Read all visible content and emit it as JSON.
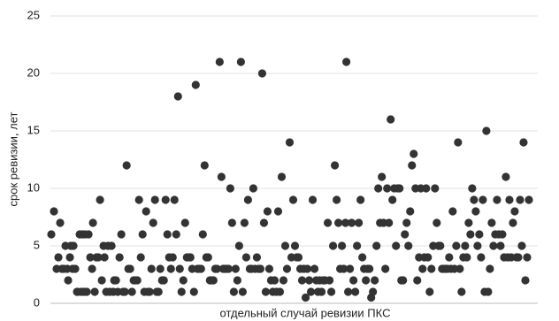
{
  "chart_data": {
    "type": "scatter",
    "y_label": "срок ревизии, лет",
    "x_label": "отдельный случай ревизии ПКС",
    "color": "#333333",
    "grid": true,
    "xlim": [
      0,
      550
    ],
    "ylim": [
      0,
      25
    ],
    "yticks": [
      0,
      5,
      10,
      15,
      20,
      25
    ],
    "x": [
      1,
      4,
      7,
      9,
      11,
      13,
      15,
      17,
      19,
      20,
      22,
      23,
      25,
      26,
      28,
      30,
      31,
      33,
      35,
      36,
      38,
      39,
      41,
      43,
      45,
      47,
      48,
      50,
      52,
      54,
      56,
      58,
      60,
      61,
      63,
      65,
      67,
      69,
      71,
      72,
      74,
      76,
      78,
      80,
      82,
      84,
      86,
      88,
      90,
      92,
      94,
      96,
      98,
      100,
      102,
      104,
      106,
      108,
      110,
      112,
      114,
      116,
      118,
      120,
      122,
      124,
      126,
      128,
      130,
      132,
      134,
      136,
      138,
      140,
      142,
      144,
      146,
      148,
      150,
      152,
      154,
      156,
      158,
      160,
      162,
      164,
      166,
      168,
      170,
      172,
      174,
      176,
      178,
      180,
      182,
      184,
      186,
      188,
      191,
      193,
      195,
      197,
      199,
      201,
      203,
      205,
      207,
      209,
      211,
      213,
      215,
      217,
      219,
      221,
      223,
      225,
      227,
      229,
      231,
      233,
      235,
      237,
      239,
      241,
      243,
      245,
      247,
      249,
      251,
      253,
      255,
      257,
      259,
      261,
      263,
      265,
      267,
      270,
      272,
      274,
      276,
      278,
      280,
      282,
      284,
      286,
      288,
      290,
      292,
      294,
      296,
      298,
      300,
      302,
      304,
      306,
      308,
      310,
      313,
      315,
      317,
      319,
      321,
      323,
      325,
      327,
      329,
      331,
      333,
      334,
      336,
      338,
      340,
      342,
      344,
      346,
      348,
      350,
      352,
      354,
      356,
      358,
      360,
      362,
      364,
      366,
      368,
      370,
      372,
      374,
      376,
      378,
      380,
      382,
      384,
      386,
      388,
      390,
      392,
      394,
      396,
      398,
      400,
      402,
      404,
      406,
      408,
      410,
      412,
      414,
      416,
      418,
      420,
      422,
      424,
      426,
      428,
      430,
      432,
      434,
      436,
      438,
      440,
      442,
      444,
      446,
      448,
      450,
      452,
      454,
      456,
      458,
      460,
      462,
      464,
      466,
      468,
      470,
      472,
      474,
      476,
      478,
      480,
      482,
      484,
      486,
      488,
      490,
      492,
      494,
      496,
      498,
      500,
      502,
      504,
      506,
      508,
      510,
      512,
      514,
      516,
      518,
      520,
      522,
      524,
      526,
      528,
      530,
      532,
      534,
      536,
      538,
      540
    ],
    "values": [
      6,
      8,
      3,
      4,
      7,
      3,
      3,
      5,
      3,
      2,
      4,
      5,
      3,
      5,
      3,
      1,
      1,
      6,
      1,
      6,
      1,
      6,
      1,
      6,
      4,
      3,
      7,
      1,
      4,
      4,
      9,
      2,
      5,
      4,
      1,
      5,
      1,
      5,
      1,
      2,
      2,
      1,
      4,
      6,
      1,
      1,
      12,
      3,
      3,
      1,
      2,
      2,
      2,
      9,
      4,
      6,
      1,
      8,
      1,
      1,
      3,
      7,
      9,
      1,
      1,
      3,
      2,
      2,
      9,
      6,
      4,
      3,
      4,
      9,
      6,
      18,
      3,
      1,
      2,
      7,
      4,
      4,
      4,
      3,
      1,
      19,
      3,
      3,
      3,
      6,
      12,
      4,
      4,
      2,
      2,
      2,
      3,
      3,
      21,
      11,
      3,
      3,
      3,
      3,
      10,
      7,
      1,
      3,
      2,
      5,
      21,
      1,
      7,
      4,
      9,
      3,
      3,
      10,
      3,
      4,
      3,
      3,
      20,
      7,
      1,
      8,
      3,
      2,
      1,
      2,
      1,
      8,
      1,
      11,
      2,
      5,
      3,
      14,
      4,
      9,
      5,
      4,
      4,
      3,
      2,
      3,
      0.5,
      3,
      2,
      1,
      9,
      3,
      2,
      1,
      2,
      1,
      2,
      2,
      7,
      2,
      1,
      5,
      12,
      9,
      7,
      3,
      5,
      3,
      7,
      21,
      1,
      3,
      7,
      2,
      1,
      5,
      7,
      9,
      4,
      3,
      2,
      3,
      3,
      0.5,
      1,
      2,
      5,
      10,
      7,
      11,
      7,
      3,
      10,
      7,
      16,
      9,
      10,
      5,
      10,
      10,
      2,
      2,
      6,
      7,
      5,
      8,
      12,
      13,
      10,
      2,
      4,
      10,
      3,
      4,
      10,
      4,
      1,
      3,
      5,
      10,
      7,
      5,
      5,
      3,
      3,
      3,
      3,
      4,
      3,
      8,
      3,
      5,
      14,
      3,
      1,
      4,
      5,
      4,
      7,
      6,
      10,
      9,
      8,
      5,
      6,
      4,
      9,
      1,
      15,
      1,
      3,
      7,
      5,
      6,
      9,
      6,
      5,
      6,
      4,
      11,
      4,
      9,
      4,
      7,
      8,
      4,
      4,
      9,
      5,
      14,
      2,
      4,
      9
    ]
  }
}
